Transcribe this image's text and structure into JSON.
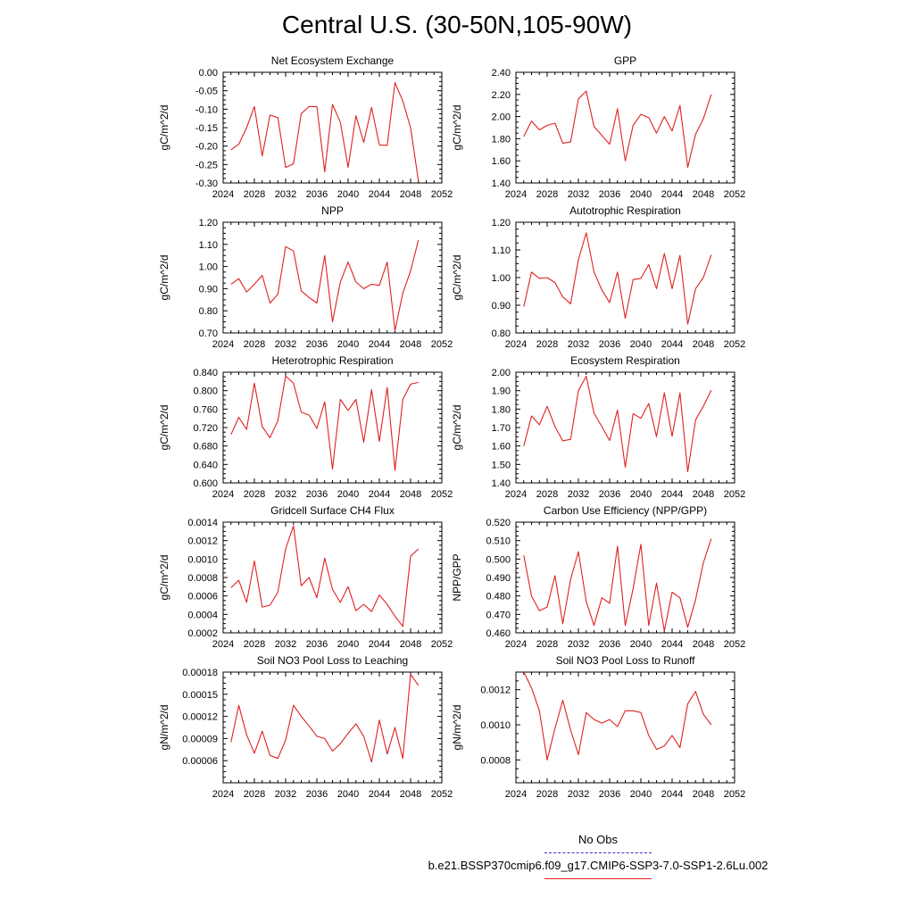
{
  "figure": {
    "title": "Central U.S. (30-50N,105-90W)",
    "legend": [
      {
        "label": "No Obs",
        "color": "#3333cc",
        "style": "dashed"
      },
      {
        "label": "b.e21.BSSP370cmip6.f09_g17.CMIP6-SSP3-7.0-SSP1-2.6Lu.002",
        "color": "#e02020",
        "style": "solid"
      }
    ]
  },
  "chart_data": [
    {
      "type": "line",
      "title": "Net Ecosystem Exchange",
      "ylabel": "gC/m^2/d",
      "xlim": [
        2024,
        2052
      ],
      "ylim": [
        -0.3,
        0.0
      ],
      "xticks": [
        "2024",
        "2028",
        "2032",
        "2036",
        "2040",
        "2044",
        "2048",
        "2052"
      ],
      "yticks": [
        "-0.30",
        "-0.25",
        "-0.20",
        "-0.15",
        "-0.10",
        "-0.05",
        "0.00"
      ],
      "x": [
        2025,
        2026,
        2027,
        2028,
        2029,
        2030,
        2031,
        2032,
        2033,
        2034,
        2035,
        2036,
        2037,
        2038,
        2039,
        2040,
        2041,
        2042,
        2043,
        2044,
        2045,
        2046,
        2047,
        2048,
        2049
      ],
      "series": [
        {
          "color": "#e02020",
          "values": [
            -0.21,
            -0.195,
            -0.15,
            -0.093,
            -0.227,
            -0.116,
            -0.123,
            -0.258,
            -0.248,
            -0.112,
            -0.093,
            -0.093,
            -0.27,
            -0.087,
            -0.135,
            -0.258,
            -0.118,
            -0.19,
            -0.095,
            -0.197,
            -0.198,
            -0.028,
            -0.078,
            -0.15,
            -0.295
          ]
        }
      ]
    },
    {
      "type": "line",
      "title": "GPP",
      "ylabel": "gC/m^2/d",
      "xlim": [
        2024,
        2052
      ],
      "ylim": [
        1.4,
        2.4
      ],
      "xticks": [
        "2024",
        "2028",
        "2032",
        "2036",
        "2040",
        "2044",
        "2048",
        "2052"
      ],
      "yticks": [
        "1.40",
        "1.60",
        "1.80",
        "2.00",
        "2.20",
        "2.40"
      ],
      "x": [
        2025,
        2026,
        2027,
        2028,
        2029,
        2030,
        2031,
        2032,
        2033,
        2034,
        2035,
        2036,
        2037,
        2038,
        2039,
        2040,
        2041,
        2042,
        2043,
        2044,
        2045,
        2046,
        2047,
        2048,
        2049
      ],
      "series": [
        {
          "color": "#e02020",
          "values": [
            1.82,
            1.96,
            1.88,
            1.92,
            1.94,
            1.76,
            1.77,
            2.16,
            2.23,
            1.91,
            1.83,
            1.75,
            2.07,
            1.6,
            1.92,
            2.02,
            1.99,
            1.85,
            2.0,
            1.87,
            2.1,
            1.54,
            1.84,
            1.98,
            2.2
          ]
        }
      ]
    },
    {
      "type": "line",
      "title": "NPP",
      "ylabel": "gC/m^2/d",
      "xlim": [
        2024,
        2052
      ],
      "ylim": [
        0.7,
        1.2
      ],
      "xticks": [
        "2024",
        "2028",
        "2032",
        "2036",
        "2040",
        "2044",
        "2048",
        "2052"
      ],
      "yticks": [
        "0.70",
        "0.80",
        "0.90",
        "1.00",
        "1.10",
        "1.20"
      ],
      "x": [
        2025,
        2026,
        2027,
        2028,
        2029,
        2030,
        2031,
        2032,
        2033,
        2034,
        2035,
        2036,
        2037,
        2038,
        2039,
        2040,
        2041,
        2042,
        2043,
        2044,
        2045,
        2046,
        2047,
        2048,
        2049
      ],
      "series": [
        {
          "color": "#e02020",
          "values": [
            0.92,
            0.945,
            0.885,
            0.92,
            0.96,
            0.835,
            0.875,
            1.09,
            1.07,
            0.89,
            0.86,
            0.835,
            1.05,
            0.75,
            0.93,
            1.02,
            0.93,
            0.9,
            0.92,
            0.915,
            1.02,
            0.71,
            0.88,
            0.98,
            1.12
          ]
        }
      ]
    },
    {
      "type": "line",
      "title": "Autotrophic Respiration",
      "ylabel": "gC/m^2/d",
      "xlim": [
        2024,
        2052
      ],
      "ylim": [
        0.8,
        1.2
      ],
      "xticks": [
        "2024",
        "2028",
        "2032",
        "2036",
        "2040",
        "2044",
        "2048",
        "2052"
      ],
      "yticks": [
        "0.80",
        "0.90",
        "1.00",
        "1.10",
        "1.20"
      ],
      "x": [
        2025,
        2026,
        2027,
        2028,
        2029,
        2030,
        2031,
        2032,
        2033,
        2034,
        2035,
        2036,
        2037,
        2038,
        2039,
        2040,
        2041,
        2042,
        2043,
        2044,
        2045,
        2046,
        2047,
        2048,
        2049
      ],
      "series": [
        {
          "color": "#e02020",
          "values": [
            0.895,
            1.02,
            0.997,
            1.0,
            0.982,
            0.93,
            0.905,
            1.065,
            1.162,
            1.02,
            0.955,
            0.91,
            1.02,
            0.853,
            0.993,
            0.997,
            1.047,
            0.96,
            1.087,
            0.96,
            1.08,
            0.832,
            0.96,
            1.0,
            1.082
          ]
        }
      ]
    },
    {
      "type": "line",
      "title": "Heterotrophic Respiration",
      "ylabel": "gC/m^2/d",
      "xlim": [
        2024,
        2052
      ],
      "ylim": [
        0.6,
        0.84
      ],
      "xticks": [
        "2024",
        "2028",
        "2032",
        "2036",
        "2040",
        "2044",
        "2048",
        "2052"
      ],
      "yticks": [
        "0.600",
        "0.640",
        "0.680",
        "0.720",
        "0.760",
        "0.800",
        "0.840"
      ],
      "x": [
        2025,
        2026,
        2027,
        2028,
        2029,
        2030,
        2031,
        2032,
        2033,
        2034,
        2035,
        2036,
        2037,
        2038,
        2039,
        2040,
        2041,
        2042,
        2043,
        2044,
        2045,
        2046,
        2047,
        2048,
        2049
      ],
      "series": [
        {
          "color": "#e02020",
          "values": [
            0.705,
            0.742,
            0.716,
            0.816,
            0.722,
            0.698,
            0.735,
            0.832,
            0.816,
            0.753,
            0.747,
            0.718,
            0.776,
            0.63,
            0.781,
            0.757,
            0.781,
            0.688,
            0.802,
            0.69,
            0.807,
            0.627,
            0.781,
            0.814,
            0.818
          ]
        }
      ]
    },
    {
      "type": "line",
      "title": "Ecosystem Respiration",
      "ylabel": "gC/m^2/d",
      "xlim": [
        2024,
        2052
      ],
      "ylim": [
        1.4,
        2.0
      ],
      "xticks": [
        "2024",
        "2028",
        "2032",
        "2036",
        "2040",
        "2044",
        "2048",
        "2052"
      ],
      "yticks": [
        "1.40",
        "1.50",
        "1.60",
        "1.70",
        "1.80",
        "1.90",
        "2.00"
      ],
      "x": [
        2025,
        2026,
        2027,
        2028,
        2029,
        2030,
        2031,
        2032,
        2033,
        2034,
        2035,
        2036,
        2037,
        2038,
        2039,
        2040,
        2041,
        2042,
        2043,
        2044,
        2045,
        2046,
        2047,
        2048,
        2049
      ],
      "series": [
        {
          "color": "#e02020",
          "values": [
            1.6,
            1.763,
            1.715,
            1.815,
            1.705,
            1.628,
            1.636,
            1.9,
            1.978,
            1.778,
            1.705,
            1.63,
            1.795,
            1.485,
            1.775,
            1.75,
            1.83,
            1.65,
            1.888,
            1.652,
            1.888,
            1.46,
            1.742,
            1.815,
            1.902
          ]
        }
      ]
    },
    {
      "type": "line",
      "title": "Gridcell Surface CH4 Flux",
      "ylabel": "gC/m^2/d",
      "xlim": [
        2024,
        2052
      ],
      "ylim": [
        0.0002,
        0.0014
      ],
      "xticks": [
        "2024",
        "2028",
        "2032",
        "2036",
        "2040",
        "2044",
        "2048",
        "2052"
      ],
      "yticks": [
        "0.0002",
        "0.0004",
        "0.0006",
        "0.0008",
        "0.0010",
        "0.0012",
        "0.0014"
      ],
      "x": [
        2025,
        2026,
        2027,
        2028,
        2029,
        2030,
        2031,
        2032,
        2033,
        2034,
        2035,
        2036,
        2037,
        2038,
        2039,
        2040,
        2041,
        2042,
        2043,
        2044,
        2045,
        2046,
        2047,
        2048,
        2049
      ],
      "series": [
        {
          "color": "#e02020",
          "values": [
            0.00069,
            0.00077,
            0.00053,
            0.00098,
            0.00048,
            0.0005,
            0.00064,
            0.00111,
            0.00136,
            0.00071,
            0.0008,
            0.00058,
            0.00101,
            0.00067,
            0.00053,
            0.0007,
            0.00044,
            0.00051,
            0.00043,
            0.00061,
            0.00051,
            0.00038,
            0.00027,
            0.00103,
            0.00111
          ]
        }
      ]
    },
    {
      "type": "line",
      "title": "Carbon Use Efficiency (NPP/GPP)",
      "ylabel": "NPP/GPP",
      "xlim": [
        2024,
        2052
      ],
      "ylim": [
        0.46,
        0.52
      ],
      "xticks": [
        "2024",
        "2028",
        "2032",
        "2036",
        "2040",
        "2044",
        "2048",
        "2052"
      ],
      "yticks": [
        "0.460",
        "0.470",
        "0.480",
        "0.490",
        "0.500",
        "0.510",
        "0.520"
      ],
      "x": [
        2025,
        2026,
        2027,
        2028,
        2029,
        2030,
        2031,
        2032,
        2033,
        2034,
        2035,
        2036,
        2037,
        2038,
        2039,
        2040,
        2041,
        2042,
        2043,
        2044,
        2045,
        2046,
        2047,
        2048,
        2049
      ],
      "series": [
        {
          "color": "#e02020",
          "values": [
            0.502,
            0.48,
            0.472,
            0.474,
            0.491,
            0.465,
            0.489,
            0.504,
            0.477,
            0.464,
            0.479,
            0.476,
            0.507,
            0.464,
            0.484,
            0.508,
            0.464,
            0.487,
            0.461,
            0.482,
            0.479,
            0.463,
            0.478,
            0.498,
            0.511
          ]
        }
      ]
    },
    {
      "type": "line",
      "title": "Soil NO3 Pool Loss to Leaching",
      "ylabel": "gN/m^2/d",
      "xlim": [
        2024,
        2052
      ],
      "ylim": [
        3e-05,
        0.00018
      ],
      "xticks": [
        "2024",
        "2028",
        "2032",
        "2036",
        "2040",
        "2044",
        "2048",
        "2052"
      ],
      "yticks": [
        "0.00006",
        "0.00009",
        "0.00012",
        "0.00015",
        "0.00018"
      ],
      "x": [
        2025,
        2026,
        2027,
        2028,
        2029,
        2030,
        2031,
        2032,
        2033,
        2034,
        2035,
        2036,
        2037,
        2038,
        2039,
        2040,
        2041,
        2042,
        2043,
        2044,
        2045,
        2046,
        2047,
        2048,
        2049
      ],
      "series": [
        {
          "color": "#e02020",
          "values": [
            8.5e-05,
            0.000135,
            9.5e-05,
            7e-05,
            0.0001,
            6.7e-05,
            6.3e-05,
            8.8e-05,
            0.000135,
            0.00012,
            0.000107,
            9.3e-05,
            9e-05,
            7.3e-05,
            8.3e-05,
            9.7e-05,
            0.00011,
            9.3e-05,
            5.8e-05,
            0.000115,
            6.9e-05,
            0.000105,
            6.3e-05,
            0.000177,
            0.000162
          ]
        }
      ]
    },
    {
      "type": "line",
      "title": "Soil NO3 Pool Loss to Runoff",
      "ylabel": "gN/m^2/d",
      "xlim": [
        2024,
        2052
      ],
      "ylim": [
        0.00067,
        0.0013
      ],
      "xticks": [
        "2024",
        "2028",
        "2032",
        "2036",
        "2040",
        "2044",
        "2048",
        "2052"
      ],
      "yticks": [
        "0.0008",
        "0.0010",
        "0.0012"
      ],
      "x": [
        2025,
        2026,
        2027,
        2028,
        2029,
        2030,
        2031,
        2032,
        2033,
        2034,
        2035,
        2036,
        2037,
        2038,
        2039,
        2040,
        2041,
        2042,
        2043,
        2044,
        2045,
        2046,
        2047,
        2048,
        2049
      ],
      "series": [
        {
          "color": "#e02020",
          "values": [
            0.0013,
            0.00121,
            0.00108,
            0.0008,
            0.00098,
            0.00114,
            0.00097,
            0.00083,
            0.00107,
            0.00103,
            0.00101,
            0.00103,
            0.00099,
            0.00108,
            0.00108,
            0.00107,
            0.00094,
            0.00086,
            0.00088,
            0.00094,
            0.00087,
            0.00112,
            0.00119,
            0.00106,
            0.001
          ]
        }
      ]
    }
  ]
}
